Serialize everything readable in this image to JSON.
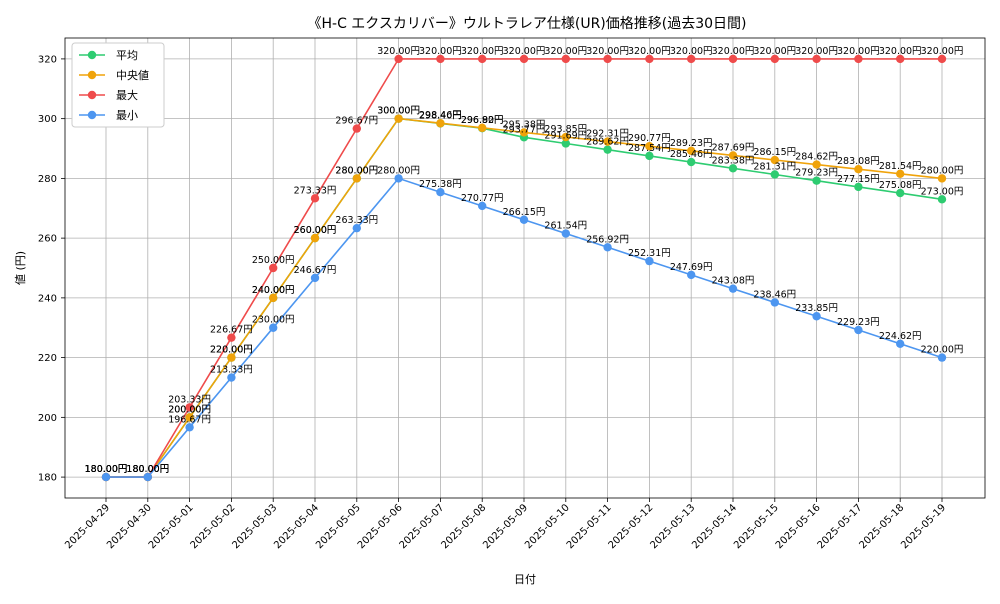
{
  "chart_data": {
    "type": "line",
    "title": "《H-C エクスカリバー》ウルトラレア仕様(UR)価格推移(過去30日間)",
    "xlabel": "日付",
    "ylabel": "値 (円)",
    "ylim": [
      173,
      327
    ],
    "yticks": [
      180,
      200,
      220,
      240,
      260,
      280,
      300,
      320
    ],
    "grid": true,
    "legend_position": "top-left",
    "label_suffix": "円",
    "categories": [
      "2025-04-29",
      "2025-04-30",
      "2025-05-01",
      "2025-05-02",
      "2025-05-03",
      "2025-05-04",
      "2025-05-05",
      "2025-05-06",
      "2025-05-07",
      "2025-05-08",
      "2025-05-09",
      "2025-05-10",
      "2025-05-11",
      "2025-05-12",
      "2025-05-13",
      "2025-05-14",
      "2025-05-15",
      "2025-05-16",
      "2025-05-17",
      "2025-05-18",
      "2025-05-19"
    ],
    "series": [
      {
        "name": "平均",
        "color": "#2ecc71",
        "values": [
          180.0,
          180.0,
          200.0,
          220.0,
          240.0,
          260.0,
          280.0,
          300.0,
          298.4,
          296.8,
          293.77,
          291.69,
          289.62,
          287.54,
          285.46,
          283.38,
          281.31,
          279.23,
          277.15,
          275.08,
          273.0
        ]
      },
      {
        "name": "中央値",
        "color": "#f0a30a",
        "values": [
          180.0,
          180.0,
          200.0,
          220.0,
          240.0,
          260.0,
          280.0,
          300.0,
          298.46,
          296.92,
          295.38,
          293.85,
          292.31,
          290.77,
          289.23,
          287.69,
          286.15,
          284.62,
          283.08,
          281.54,
          280.0
        ]
      },
      {
        "name": "最大",
        "color": "#ef4b4b",
        "values": [
          180.0,
          180.0,
          203.33,
          226.67,
          250.0,
          273.33,
          296.67,
          320.0,
          320.0,
          320.0,
          320.0,
          320.0,
          320.0,
          320.0,
          320.0,
          320.0,
          320.0,
          320.0,
          320.0,
          320.0,
          320.0
        ]
      },
      {
        "name": "最小",
        "color": "#4d96f0",
        "values": [
          180.0,
          180.0,
          196.67,
          213.33,
          230.0,
          246.67,
          263.33,
          280.0,
          275.38,
          270.77,
          266.15,
          261.54,
          256.92,
          252.31,
          247.69,
          243.08,
          238.46,
          233.85,
          229.23,
          224.62,
          220.0
        ]
      }
    ]
  }
}
